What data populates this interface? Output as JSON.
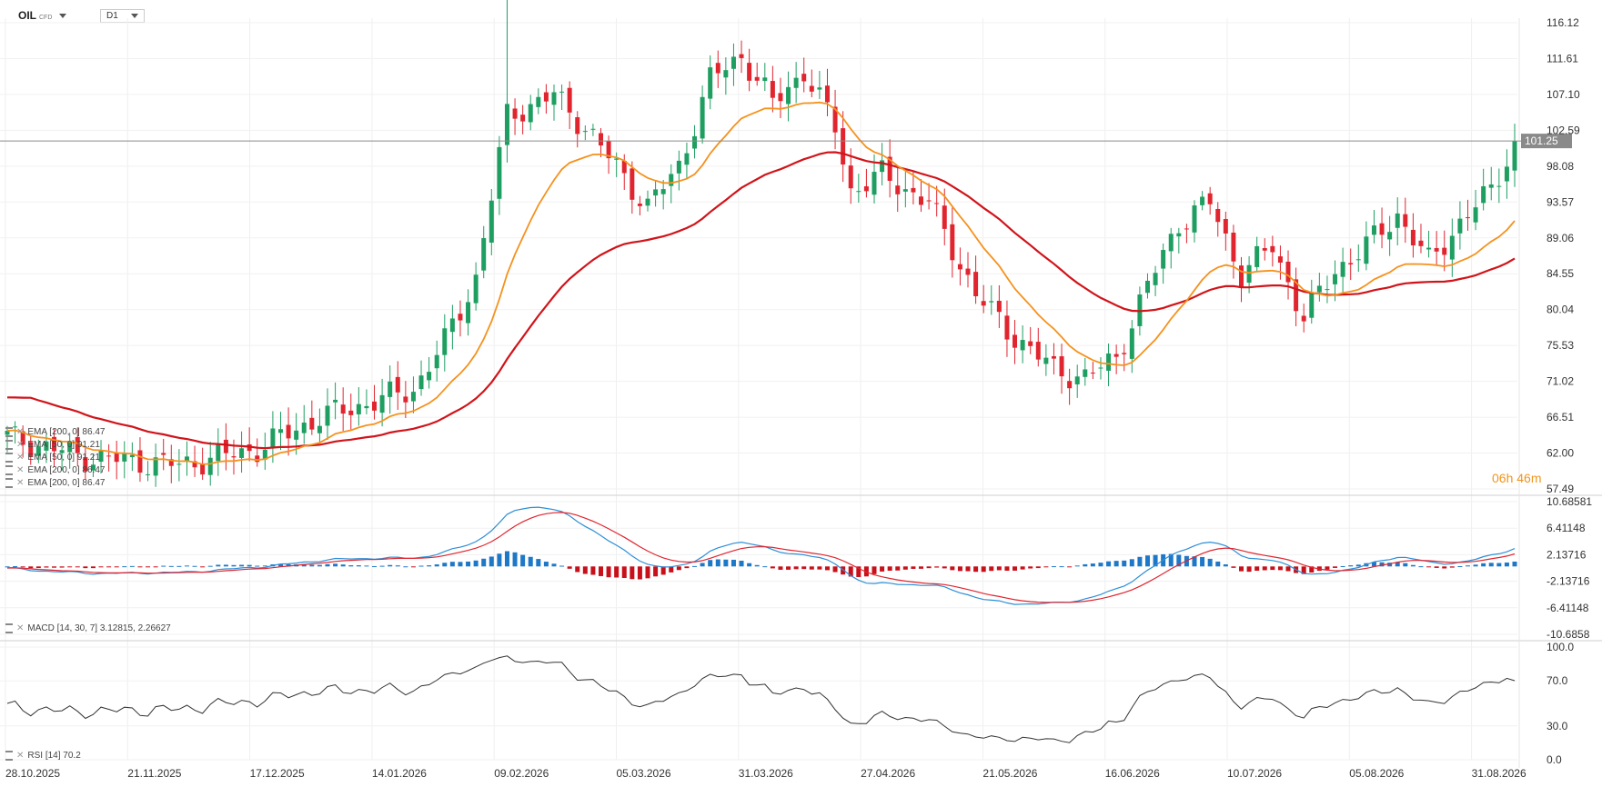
{
  "header": {
    "symbol": "OIL",
    "instrument_type": "CFD",
    "timeframe": "D1",
    "countdown_h": "06",
    "countdown_m": "46"
  },
  "price_axis": {
    "ticks": [
      "116.12",
      "111.61",
      "107.10",
      "102.59",
      "98.08",
      "93.57",
      "89.06",
      "84.55",
      "80.04",
      "75.53",
      "71.02",
      "66.51",
      "62.00",
      "57.49"
    ],
    "current_price": "101.25"
  },
  "macd_axis": {
    "ticks": [
      "10.68581",
      "6.41148",
      "2.13716",
      "-2.13716",
      "-6.41148",
      "-10.6858"
    ]
  },
  "rsi_axis": {
    "ticks": [
      "100.0",
      "70.0",
      "30.0",
      "0.0"
    ]
  },
  "x_axis": {
    "labels": [
      "28.10.2025",
      "21.11.2025",
      "17.12.2025",
      "14.01.2026",
      "09.02.2026",
      "05.03.2026",
      "31.03.2026",
      "27.04.2026",
      "21.05.2026",
      "16.06.2026",
      "10.07.2026",
      "05.08.2026",
      "31.08.2026"
    ]
  },
  "legends": {
    "price": [
      "EMA [200, 0] 86.47",
      "EMA [50, 0] 91.21",
      "EMA [50, 0] 91.21",
      "EMA [200, 0] 86.47",
      "EMA [200, 0] 86.47"
    ],
    "macd": "MACD [14, 30, 7] 3.12815, 2.26627",
    "rsi": "RSI [14] 70.2"
  },
  "colors": {
    "up": "#1e9e61",
    "down": "#e0252f",
    "ema50": "#f5921e",
    "ema200": "#d0141a",
    "macd": "#2e8fd6",
    "signal": "#e0252f",
    "hist_pos": "#1e78c8",
    "hist_neg": "#c8101a",
    "rsi": "#333333",
    "countdown": "#f0961e"
  },
  "chart_data": {
    "type": "candlestick",
    "anchors_close": [
      [
        0,
        64.0
      ],
      [
        10,
        61.5
      ],
      [
        22,
        60.5
      ],
      [
        32,
        62.5
      ],
      [
        40,
        66.5
      ],
      [
        47,
        68.5
      ],
      [
        52,
        70.0
      ],
      [
        56,
        76.0
      ],
      [
        60,
        84.0
      ],
      [
        64,
        104.5
      ],
      [
        70,
        107.0
      ],
      [
        74,
        103.0
      ],
      [
        78,
        98.0
      ],
      [
        82,
        93.0
      ],
      [
        86,
        98.0
      ],
      [
        90,
        109.0
      ],
      [
        94,
        112.0
      ],
      [
        98,
        106.0
      ],
      [
        102,
        110.0
      ],
      [
        106,
        103.0
      ],
      [
        108,
        95.0
      ],
      [
        112,
        97.0
      ],
      [
        118,
        93.5
      ],
      [
        124,
        82.0
      ],
      [
        128,
        77.5
      ],
      [
        134,
        72.5
      ],
      [
        138,
        71.5
      ],
      [
        142,
        74.0
      ],
      [
        146,
        83.0
      ],
      [
        150,
        91.0
      ],
      [
        154,
        93.5
      ],
      [
        158,
        84.5
      ],
      [
        162,
        88.0
      ],
      [
        166,
        79.0
      ],
      [
        170,
        85.0
      ],
      [
        174,
        88.0
      ],
      [
        178,
        92.0
      ],
      [
        182,
        86.0
      ],
      [
        186,
        91.0
      ],
      [
        190,
        95.0
      ],
      [
        193,
        101.25
      ]
    ],
    "ema50_end": 91.21,
    "ema200_end": 86.47,
    "macd_end": 3.12815,
    "signal_end": 2.26627,
    "rsi_end": 70.2,
    "ylim": [
      57.49,
      116.12
    ]
  }
}
